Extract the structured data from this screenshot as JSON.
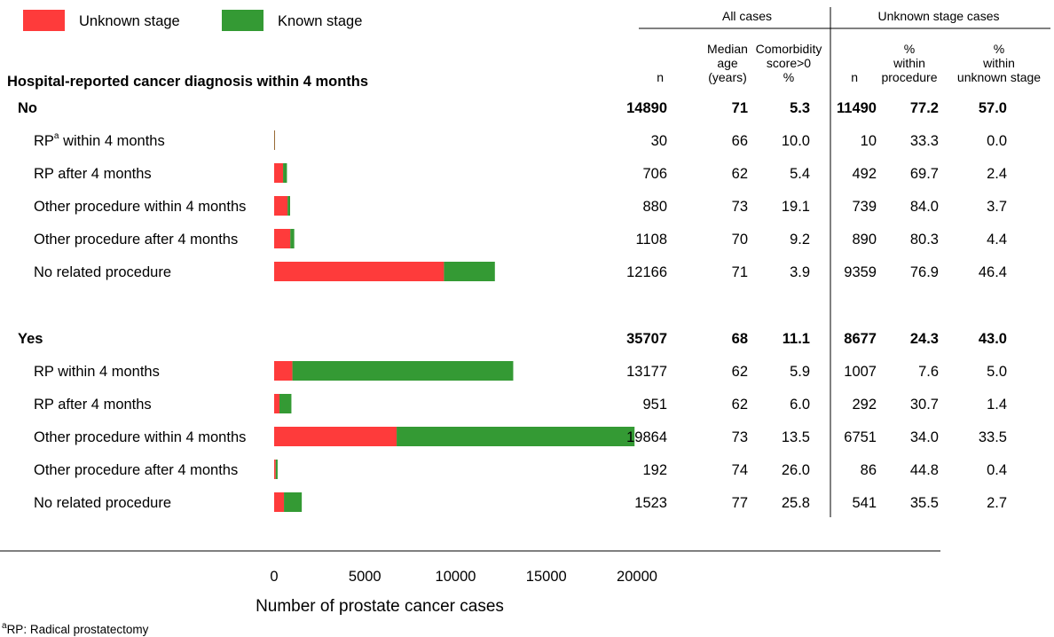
{
  "legend": [
    {
      "label": "Unknown stage",
      "color": "#fe3b3b"
    },
    {
      "label": "Known stage",
      "color": "#349a34"
    }
  ],
  "table": {
    "group_headers": [
      "All cases",
      "Unknown stage cases"
    ],
    "column_headers": [
      [
        "n"
      ],
      [
        "Median",
        "age",
        "(years)"
      ],
      [
        "Comorbidity",
        "score>0",
        "%"
      ],
      [
        "n"
      ],
      [
        "%",
        "within",
        "procedure"
      ],
      [
        "%",
        "within",
        "unknown stage"
      ]
    ],
    "section_title": "Hospital-reported cancer diagnosis within 4 months"
  },
  "chart_data": {
    "type": "bar",
    "stacked": true,
    "orientation": "horizontal",
    "xlabel": "Number of prostate cancer cases",
    "xlim": [
      0,
      20000
    ],
    "xticks": [
      "0",
      "5000",
      "10000",
      "15000",
      "20000"
    ],
    "legend_position": "top-left",
    "grid": false,
    "groups": [
      {
        "label": "No",
        "totals": [
          "14890",
          "71",
          "5.3",
          "11490",
          "77.2",
          "57.0"
        ],
        "rows": [
          {
            "label": "RP",
            "superscript": "a",
            "suffix": " within 4 months",
            "unknown": 10,
            "known": 20,
            "cols": [
              "30",
              "66",
              "10.0",
              "10",
              "33.3",
              "0.0"
            ]
          },
          {
            "label": "RP after 4 months",
            "unknown": 492,
            "known": 214,
            "cols": [
              "706",
              "62",
              "5.4",
              "492",
              "69.7",
              "2.4"
            ]
          },
          {
            "label": "Other procedure within 4 months",
            "unknown": 739,
            "known": 141,
            "cols": [
              "880",
              "73",
              "19.1",
              "739",
              "84.0",
              "3.7"
            ]
          },
          {
            "label": "Other procedure after 4 months",
            "unknown": 890,
            "known": 218,
            "cols": [
              "1108",
              "70",
              "9.2",
              "890",
              "80.3",
              "4.4"
            ]
          },
          {
            "label": "No related procedure",
            "unknown": 9359,
            "known": 2807,
            "cols": [
              "12166",
              "71",
              "3.9",
              "9359",
              "76.9",
              "46.4"
            ]
          }
        ]
      },
      {
        "label": "Yes",
        "totals": [
          "35707",
          "68",
          "11.1",
          "8677",
          "24.3",
          "43.0"
        ],
        "rows": [
          {
            "label": "RP within 4 months",
            "unknown": 1007,
            "known": 12170,
            "cols": [
              "13177",
              "62",
              "5.9",
              "1007",
              "7.6",
              "5.0"
            ]
          },
          {
            "label": "RP after 4 months",
            "unknown": 292,
            "known": 659,
            "cols": [
              "951",
              "62",
              "6.0",
              "292",
              "30.7",
              "1.4"
            ]
          },
          {
            "label": "Other procedure within 4 months",
            "unknown": 6751,
            "known": 13113,
            "cols": [
              "19864",
              "73",
              "13.5",
              "6751",
              "34.0",
              "33.5"
            ]
          },
          {
            "label": "Other procedure after 4 months",
            "unknown": 86,
            "known": 106,
            "cols": [
              "192",
              "74",
              "26.0",
              "86",
              "44.8",
              "0.4"
            ]
          },
          {
            "label": "No related procedure",
            "unknown": 541,
            "known": 982,
            "cols": [
              "1523",
              "77",
              "25.8",
              "541",
              "35.5",
              "2.7"
            ]
          }
        ]
      }
    ]
  },
  "footnote": {
    "marker": "a",
    "text": "RP: Radical prostatectomy"
  }
}
